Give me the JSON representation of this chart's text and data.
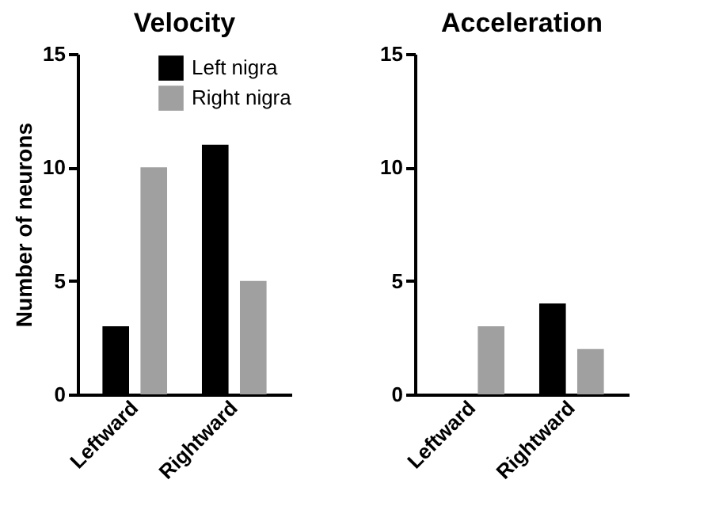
{
  "chart_data": [
    {
      "type": "bar",
      "title": "Velocity",
      "ylabel": "Number of neurons",
      "categories": [
        "Leftward",
        "Rightward"
      ],
      "series": [
        {
          "name": "Left nigra",
          "color": "#000000",
          "values": [
            3,
            11
          ]
        },
        {
          "name": "Right nigra",
          "color": "#a0a0a0",
          "values": [
            10,
            5
          ]
        }
      ],
      "ylim": [
        0,
        15
      ],
      "yticks": [
        0,
        5,
        10,
        15
      ],
      "legend": "top right"
    },
    {
      "type": "bar",
      "title": "Acceleration",
      "categories": [
        "Leftward",
        "Rightward"
      ],
      "series": [
        {
          "color": "#000000",
          "values": [
            0,
            4
          ]
        },
        {
          "color": "#a0a0a0",
          "values": [
            3,
            2
          ]
        }
      ],
      "ylim": [
        0,
        15
      ],
      "yticks": [
        0,
        5,
        10,
        15
      ]
    }
  ]
}
